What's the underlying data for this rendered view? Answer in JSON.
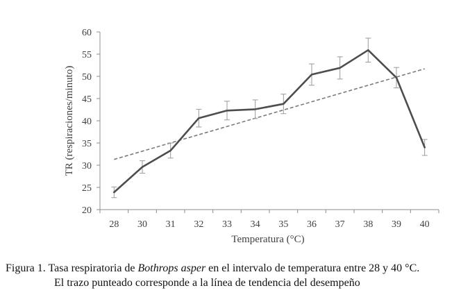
{
  "chart_data": {
    "type": "line",
    "categories": [
      "28",
      "30",
      "31",
      "32",
      "33",
      "34",
      "35",
      "36",
      "37",
      "38",
      "39",
      "40"
    ],
    "series": [
      {
        "values": [
          23.9,
          29.6,
          33.3,
          40.6,
          42.3,
          42.6,
          43.8,
          50.4,
          51.9,
          55.9,
          49.7,
          34.0
        ],
        "error": [
          1.2,
          1.4,
          1.7,
          2.0,
          2.1,
          2.1,
          2.2,
          2.4,
          2.5,
          2.7,
          2.3,
          1.8
        ]
      }
    ],
    "trendline": {
      "style": "dashed",
      "start": 31.3,
      "end": 51.7
    },
    "xlabel": "Temperatura (°C)",
    "ylabel": "TR (respiraciones/minuto)",
    "ylim": [
      20,
      60
    ],
    "yticks": [
      20,
      25,
      30,
      35,
      40,
      45,
      50,
      55,
      60
    ],
    "grid": false,
    "legend": "none",
    "line_color": "#4d4d4d",
    "trend_color": "#7a7a7a"
  },
  "caption": {
    "label": "Figura 1.",
    "text_before": " Tasa respiratoria de ",
    "species": "Bothrops asper",
    "text_after": " en el intervalo de temperatura entre 28 y 40 °C.",
    "line2": "El trazo punteado corresponde a la línea de tendencia del desempeño"
  }
}
